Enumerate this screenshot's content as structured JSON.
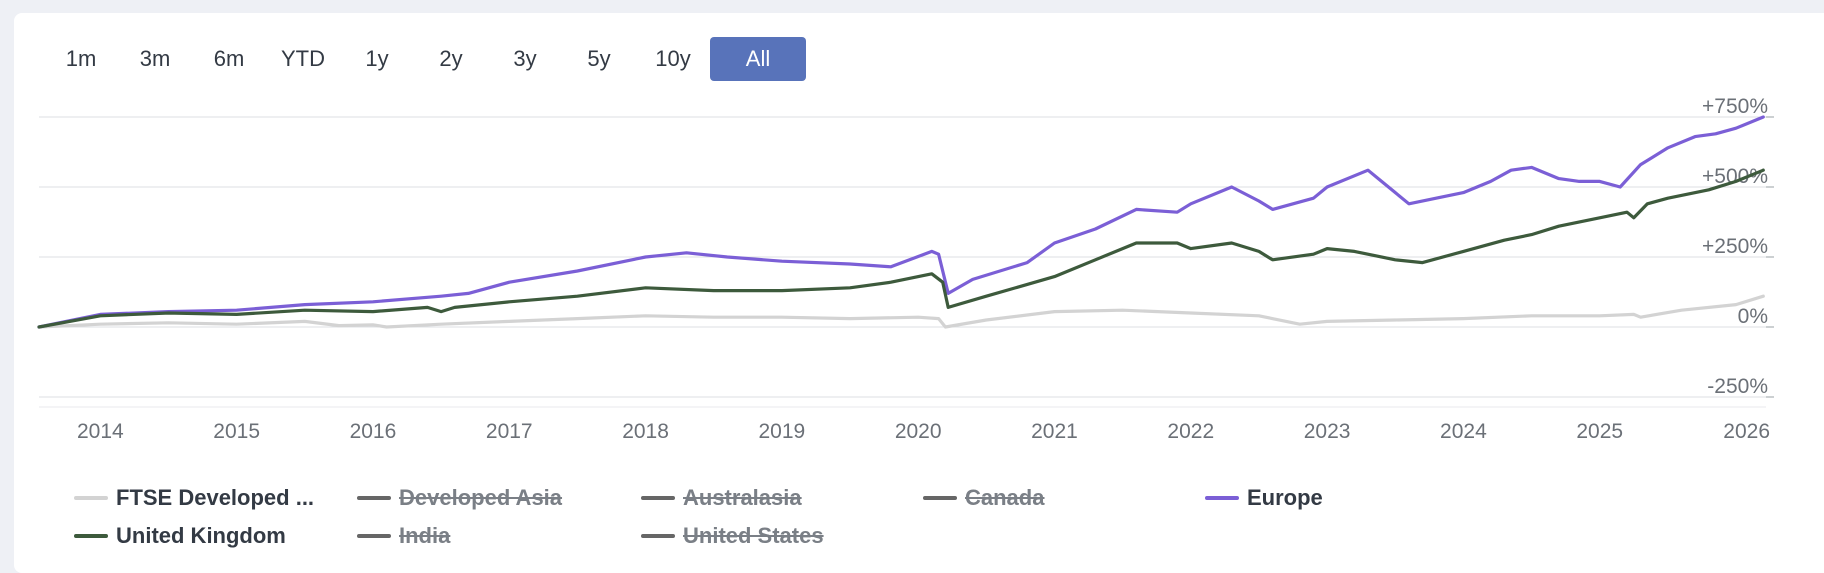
{
  "range_buttons": [
    {
      "label": "1m",
      "active": false
    },
    {
      "label": "3m",
      "active": false
    },
    {
      "label": "6m",
      "active": false
    },
    {
      "label": "YTD",
      "active": false
    },
    {
      "label": "1y",
      "active": false
    },
    {
      "label": "2y",
      "active": false
    },
    {
      "label": "3y",
      "active": false
    },
    {
      "label": "5y",
      "active": false
    },
    {
      "label": "10y",
      "active": false
    },
    {
      "label": "All",
      "active": true
    }
  ],
  "legend": {
    "row1": [
      {
        "label": "FTSE Developed ...",
        "color": "#d3d3d3",
        "visible": true
      },
      {
        "label": "Developed Asia",
        "color": "#666666",
        "visible": false
      },
      {
        "label": "Australasia",
        "color": "#666666",
        "visible": false
      },
      {
        "label": "Canada",
        "color": "#666666",
        "visible": false
      },
      {
        "label": "Europe",
        "color": "#7b5fd6",
        "visible": true
      }
    ],
    "row2": [
      {
        "label": "United Kingdom",
        "color": "#3d5a3c",
        "visible": true
      },
      {
        "label": "India",
        "color": "#666666",
        "visible": false
      },
      {
        "label": "United States",
        "color": "#666666",
        "visible": false
      }
    ]
  },
  "chart_data": {
    "type": "line",
    "xlabel": "",
    "ylabel": "",
    "x_ticks": [
      "2014",
      "2015",
      "2016",
      "2017",
      "2018",
      "2019",
      "2020",
      "2021",
      "2022",
      "2023",
      "2024",
      "2025",
      "2026"
    ],
    "y_ticks": [
      "+750%",
      "+500%",
      "+250%",
      "0%",
      "-250%"
    ],
    "ylim": [
      -250,
      750
    ],
    "xlim": [
      2013.55,
      2026.22
    ],
    "grid": true,
    "series": [
      {
        "name": "FTSE Developed ...",
        "color": "#d3d3d3",
        "x": [
          2013.55,
          2014.0,
          2014.5,
          2015.0,
          2015.5,
          2015.75,
          2016.0,
          2016.1,
          2016.5,
          2017.0,
          2017.5,
          2018.0,
          2018.5,
          2019.0,
          2019.5,
          2020.0,
          2020.15,
          2020.2,
          2020.5,
          2021.0,
          2021.5,
          2022.0,
          2022.5,
          2022.8,
          2023.0,
          2023.5,
          2024.0,
          2024.5,
          2025.0,
          2025.25,
          2025.3,
          2025.6,
          2026.0,
          2026.2
        ],
        "y": [
          0,
          10,
          15,
          10,
          20,
          5,
          8,
          0,
          10,
          20,
          30,
          40,
          35,
          35,
          30,
          35,
          30,
          0,
          25,
          55,
          60,
          50,
          40,
          10,
          20,
          25,
          30,
          40,
          40,
          45,
          35,
          60,
          80,
          110
        ]
      },
      {
        "name": "Europe",
        "color": "#7b5fd6",
        "x": [
          2013.55,
          2014.0,
          2014.5,
          2015.0,
          2015.5,
          2016.0,
          2016.5,
          2016.7,
          2017.0,
          2017.5,
          2018.0,
          2018.3,
          2018.6,
          2019.0,
          2019.5,
          2019.8,
          2020.1,
          2020.15,
          2020.22,
          2020.4,
          2020.8,
          2021.0,
          2021.3,
          2021.6,
          2021.9,
          2022.0,
          2022.3,
          2022.5,
          2022.6,
          2022.9,
          2023.0,
          2023.3,
          2023.4,
          2023.6,
          2023.8,
          2024.0,
          2024.2,
          2024.35,
          2024.5,
          2024.7,
          2024.85,
          2025.0,
          2025.15,
          2025.3,
          2025.5,
          2025.7,
          2025.85,
          2026.0,
          2026.2
        ],
        "y": [
          0,
          45,
          55,
          60,
          80,
          90,
          110,
          120,
          160,
          200,
          250,
          265,
          250,
          235,
          225,
          215,
          270,
          260,
          120,
          170,
          230,
          300,
          350,
          420,
          410,
          440,
          500,
          450,
          420,
          460,
          500,
          560,
          520,
          440,
          460,
          480,
          520,
          560,
          570,
          530,
          520,
          520,
          500,
          580,
          640,
          680,
          690,
          710,
          750
        ]
      },
      {
        "name": "United Kingdom",
        "color": "#3d5a3c",
        "x": [
          2013.55,
          2014.0,
          2014.5,
          2015.0,
          2015.5,
          2016.0,
          2016.4,
          2016.5,
          2016.6,
          2017.0,
          2017.5,
          2018.0,
          2018.5,
          2019.0,
          2019.5,
          2019.8,
          2020.1,
          2020.18,
          2020.22,
          2020.5,
          2021.0,
          2021.3,
          2021.6,
          2021.9,
          2022.0,
          2022.3,
          2022.5,
          2022.6,
          2022.9,
          2023.0,
          2023.2,
          2023.5,
          2023.7,
          2024.0,
          2024.3,
          2024.5,
          2024.7,
          2025.0,
          2025.2,
          2025.25,
          2025.35,
          2025.5,
          2025.8,
          2026.0,
          2026.2
        ],
        "y": [
          0,
          40,
          50,
          45,
          60,
          55,
          70,
          55,
          70,
          90,
          110,
          140,
          130,
          130,
          140,
          160,
          190,
          160,
          70,
          110,
          180,
          240,
          300,
          300,
          280,
          300,
          270,
          240,
          260,
          280,
          270,
          240,
          230,
          270,
          310,
          330,
          360,
          390,
          410,
          390,
          440,
          460,
          490,
          520,
          560
        ]
      }
    ]
  }
}
